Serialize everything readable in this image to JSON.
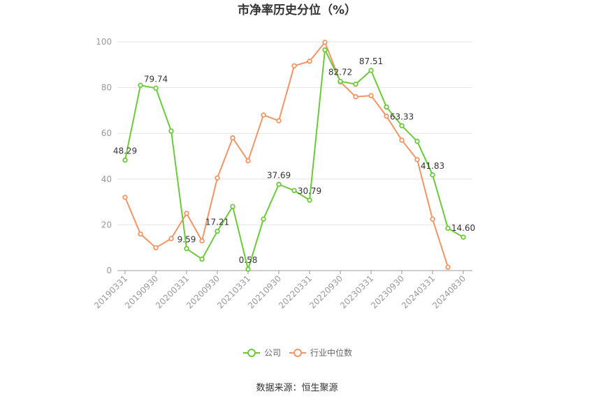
{
  "chart_data": {
    "type": "line",
    "title": "市净率历史分位（%）",
    "source": "数据来源：恒生聚源",
    "ylim": [
      0,
      100
    ],
    "yticks": [
      "0",
      "20",
      "40",
      "60",
      "80",
      "100"
    ],
    "categories": [
      "20190331",
      "20190630",
      "20190930",
      "20191231",
      "20200331",
      "20200630",
      "20200930",
      "20201231",
      "20210331",
      "20210630",
      "20210930",
      "20211231",
      "20220331",
      "20220630",
      "20220930",
      "20221231",
      "20230331",
      "20230630",
      "20230930",
      "20231231",
      "20240331",
      "20240630",
      "20240830"
    ],
    "xtick_labels": [
      "20190331",
      "20190930",
      "20200331",
      "20200930",
      "20210331",
      "20210930",
      "20220331",
      "20220930",
      "20230331",
      "20230930",
      "20240331",
      "20240830"
    ],
    "grid": true,
    "legend_position": "bottom",
    "series": [
      {
        "name": "公司",
        "color": "#6cc93a",
        "values": [
          48.29,
          81.0,
          79.74,
          61.0,
          9.59,
          5.0,
          17.21,
          28.0,
          0.58,
          22.5,
          37.69,
          35.0,
          30.79,
          96.5,
          82.72,
          81.5,
          87.51,
          71.5,
          63.33,
          56.5,
          41.83,
          18.5,
          14.6
        ],
        "labels": [
          "48.29",
          "",
          "79.74",
          "",
          "9.59",
          "",
          "17.21",
          "",
          "0.58",
          "",
          "37.69",
          "",
          "30.79",
          "",
          "82.72",
          "",
          "87.51",
          "",
          "63.33",
          "",
          "41.83",
          "",
          "14.60"
        ]
      },
      {
        "name": "行业中位数",
        "color": "#f29566",
        "values": [
          32.0,
          16.0,
          10.0,
          14.0,
          25.0,
          13.0,
          40.5,
          58.0,
          48.0,
          68.0,
          65.5,
          89.5,
          91.5,
          99.8,
          82.5,
          76.0,
          76.5,
          67.5,
          57.0,
          48.5,
          22.5,
          1.5,
          null
        ],
        "labels": []
      }
    ]
  }
}
